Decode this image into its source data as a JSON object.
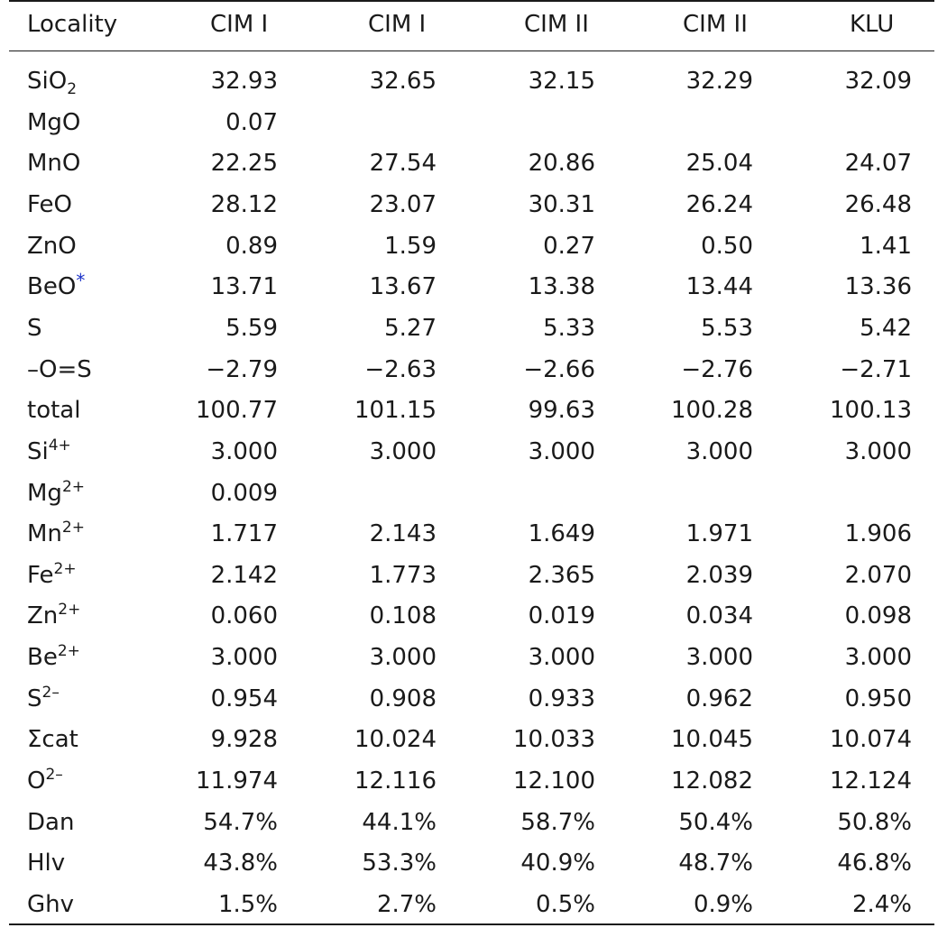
{
  "header": {
    "locality": "Locality",
    "columns": [
      "CIM I",
      "CIM I",
      "CIM II",
      "CIM II",
      "KLU"
    ]
  },
  "rows": [
    {
      "label": {
        "base": "SiO",
        "sub": "2",
        "sup": "",
        "note": ""
      },
      "values": [
        "32.93",
        "32.65",
        "32.15",
        "32.29",
        "32.09"
      ]
    },
    {
      "label": {
        "base": "MgO",
        "sub": "",
        "sup": "",
        "note": ""
      },
      "values": [
        "0.07",
        "",
        "",
        "",
        ""
      ]
    },
    {
      "label": {
        "base": "MnO",
        "sub": "",
        "sup": "",
        "note": ""
      },
      "values": [
        "22.25",
        "27.54",
        "20.86",
        "25.04",
        "24.07"
      ]
    },
    {
      "label": {
        "base": "FeO",
        "sub": "",
        "sup": "",
        "note": ""
      },
      "values": [
        "28.12",
        "23.07",
        "30.31",
        "26.24",
        "26.48"
      ]
    },
    {
      "label": {
        "base": "ZnO",
        "sub": "",
        "sup": "",
        "note": ""
      },
      "values": [
        "0.89",
        "1.59",
        "0.27",
        "0.50",
        "1.41"
      ]
    },
    {
      "label": {
        "base": "BeO",
        "sub": "",
        "sup": "",
        "note": "*"
      },
      "values": [
        "13.71",
        "13.67",
        "13.38",
        "13.44",
        "13.36"
      ]
    },
    {
      "label": {
        "base": "S",
        "sub": "",
        "sup": "",
        "note": ""
      },
      "values": [
        "5.59",
        "5.27",
        "5.33",
        "5.53",
        "5.42"
      ]
    },
    {
      "label": {
        "base": "–O=S",
        "sub": "",
        "sup": "",
        "note": ""
      },
      "values": [
        "−2.79",
        "−2.63",
        "−2.66",
        "−2.76",
        "−2.71"
      ]
    },
    {
      "label": {
        "base": "total",
        "sub": "",
        "sup": "",
        "note": ""
      },
      "values": [
        "100.77",
        "101.15",
        "99.63",
        "100.28",
        "100.13"
      ]
    },
    {
      "label": {
        "base": "Si",
        "sub": "",
        "sup": "4+",
        "note": ""
      },
      "values": [
        "3.000",
        "3.000",
        "3.000",
        "3.000",
        "3.000"
      ]
    },
    {
      "label": {
        "base": "Mg",
        "sub": "",
        "sup": "2+",
        "note": ""
      },
      "values": [
        "0.009",
        "",
        "",
        "",
        ""
      ]
    },
    {
      "label": {
        "base": "Mn",
        "sub": "",
        "sup": "2+",
        "note": ""
      },
      "values": [
        "1.717",
        "2.143",
        "1.649",
        "1.971",
        "1.906"
      ]
    },
    {
      "label": {
        "base": "Fe",
        "sub": "",
        "sup": "2+",
        "note": ""
      },
      "values": [
        "2.142",
        "1.773",
        "2.365",
        "2.039",
        "2.070"
      ]
    },
    {
      "label": {
        "base": "Zn",
        "sub": "",
        "sup": "2+",
        "note": ""
      },
      "values": [
        "0.060",
        "0.108",
        "0.019",
        "0.034",
        "0.098"
      ]
    },
    {
      "label": {
        "base": "Be",
        "sub": "",
        "sup": "2+",
        "note": ""
      },
      "values": [
        "3.000",
        "3.000",
        "3.000",
        "3.000",
        "3.000"
      ]
    },
    {
      "label": {
        "base": "S",
        "sub": "",
        "sup": "2–",
        "note": ""
      },
      "values": [
        "0.954",
        "0.908",
        "0.933",
        "0.962",
        "0.950"
      ]
    },
    {
      "label": {
        "base": "Σcat",
        "sub": "",
        "sup": "",
        "note": ""
      },
      "values": [
        "9.928",
        "10.024",
        "10.033",
        "10.045",
        "10.074"
      ]
    },
    {
      "label": {
        "base": "O",
        "sub": "",
        "sup": "2–",
        "note": ""
      },
      "values": [
        "11.974",
        "12.116",
        "12.100",
        "12.082",
        "12.124"
      ]
    },
    {
      "label": {
        "base": "Dan",
        "sub": "",
        "sup": "",
        "note": ""
      },
      "values": [
        "54.7%",
        "44.1%",
        "58.7%",
        "50.4%",
        "50.8%"
      ]
    },
    {
      "label": {
        "base": "Hlv",
        "sub": "",
        "sup": "",
        "note": ""
      },
      "values": [
        "43.8%",
        "53.3%",
        "40.9%",
        "48.7%",
        "46.8%"
      ]
    },
    {
      "label": {
        "base": "Ghv",
        "sub": "",
        "sup": "",
        "note": ""
      },
      "values": [
        "1.5%",
        "2.7%",
        "0.5%",
        "0.9%",
        "2.4%"
      ]
    }
  ]
}
